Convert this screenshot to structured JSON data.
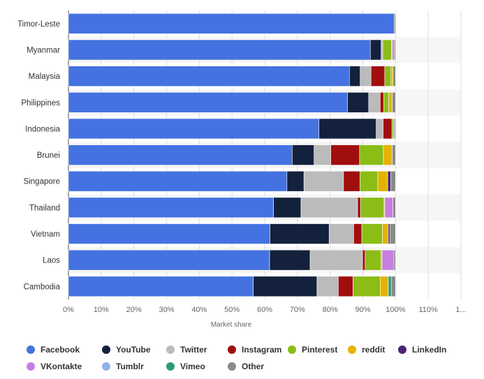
{
  "chart_data": {
    "type": "bar",
    "orientation": "horizontal",
    "stacked": true,
    "title": "",
    "xlabel": "Market share",
    "ylabel": "",
    "xlim": [
      0,
      1.2
    ],
    "x_tick_labels": [
      "0%",
      "10%",
      "20%",
      "30%",
      "40%",
      "50%",
      "60%",
      "70%",
      "80%",
      "90%",
      "100%",
      "110%",
      "1..."
    ],
    "grid": true,
    "legend_position": "bottom",
    "categories": [
      "Timor-Leste",
      "Myanmar",
      "Malaysia",
      "Philippines",
      "Indonesia",
      "Brunei",
      "Singapore",
      "Thailand",
      "Vietnam",
      "Laos",
      "Cambodia"
    ],
    "series": [
      {
        "name": "Facebook",
        "color": "#4472e0",
        "values": [
          0.996,
          0.923,
          0.859,
          0.853,
          0.766,
          0.684,
          0.668,
          0.627,
          0.616,
          0.615,
          0.565
        ]
      },
      {
        "name": "YouTube",
        "color": "#14213d",
        "values": [
          0.0,
          0.033,
          0.033,
          0.065,
          0.175,
          0.067,
          0.052,
          0.084,
          0.181,
          0.124,
          0.195
        ]
      },
      {
        "name": "Twitter",
        "color": "#bbbbbb",
        "values": [
          0.0,
          0.005,
          0.033,
          0.035,
          0.021,
          0.051,
          0.121,
          0.173,
          0.075,
          0.16,
          0.065
        ]
      },
      {
        "name": "Instagram",
        "color": "#a10e0e",
        "values": [
          0.0,
          0.0,
          0.042,
          0.011,
          0.027,
          0.088,
          0.05,
          0.009,
          0.025,
          0.008,
          0.045
        ]
      },
      {
        "name": "Pinterest",
        "color": "#8bbd16",
        "values": [
          0.0,
          0.027,
          0.019,
          0.015,
          0.006,
          0.073,
          0.055,
          0.072,
          0.063,
          0.048,
          0.083
        ]
      },
      {
        "name": "reddit",
        "color": "#e4b200",
        "values": [
          0.0,
          0.002,
          0.006,
          0.011,
          0.001,
          0.027,
          0.03,
          0.002,
          0.018,
          0.004,
          0.025
        ]
      },
      {
        "name": "LinkedIn",
        "color": "#4a2574",
        "values": [
          0.0,
          0.0,
          0.0,
          0.0,
          0.0,
          0.0,
          0.009,
          0.0,
          0.005,
          0.0,
          0.0
        ]
      },
      {
        "name": "VKontakte",
        "color": "#c77ee0",
        "values": [
          0.0,
          0.006,
          0.0,
          0.0,
          0.0,
          0.0,
          0.0,
          0.025,
          0.0,
          0.036,
          0.0
        ]
      },
      {
        "name": "Tumblr",
        "color": "#8fb3e6",
        "values": [
          0.0,
          0.0,
          0.0,
          0.0,
          0.0,
          0.0,
          0.0,
          0.0,
          0.0,
          0.0,
          0.0
        ]
      },
      {
        "name": "Vimeo",
        "color": "#2a9c7c",
        "values": [
          0.0,
          0.0,
          0.0,
          0.0,
          0.0,
          0.0,
          0.0,
          0.0,
          0.0,
          0.0,
          0.009
        ]
      },
      {
        "name": "Other",
        "color": "#8a8a8a",
        "values": [
          0.004,
          0.004,
          0.008,
          0.01,
          0.004,
          0.01,
          0.015,
          0.008,
          0.017,
          0.005,
          0.013
        ]
      }
    ]
  }
}
